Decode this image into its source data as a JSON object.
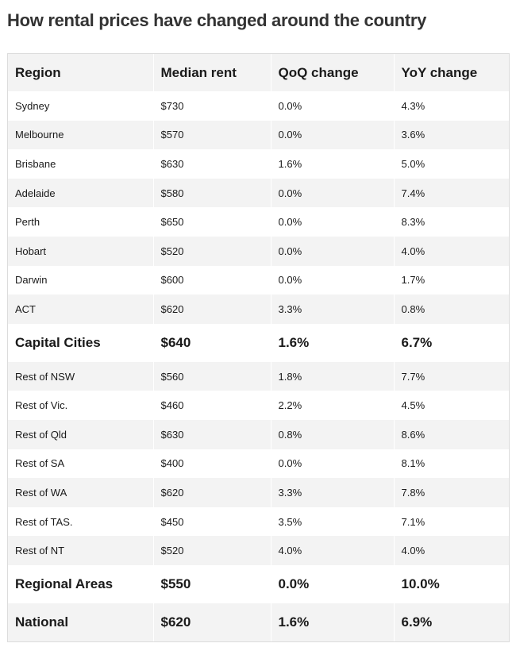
{
  "title": "How rental prices have changed around the country",
  "table": {
    "headers": [
      "Region",
      "Median rent",
      "QoQ change",
      "YoY change"
    ],
    "rows": [
      {
        "cells": [
          "Sydney",
          "$730",
          "0.0%",
          "4.3%"
        ],
        "summary": false
      },
      {
        "cells": [
          "Melbourne",
          "$570",
          "0.0%",
          "3.6%"
        ],
        "summary": false
      },
      {
        "cells": [
          "Brisbane",
          "$630",
          "1.6%",
          "5.0%"
        ],
        "summary": false
      },
      {
        "cells": [
          "Adelaide",
          "$580",
          "0.0%",
          "7.4%"
        ],
        "summary": false
      },
      {
        "cells": [
          "Perth",
          "$650",
          "0.0%",
          "8.3%"
        ],
        "summary": false
      },
      {
        "cells": [
          "Hobart",
          "$520",
          "0.0%",
          "4.0%"
        ],
        "summary": false
      },
      {
        "cells": [
          "Darwin",
          "$600",
          "0.0%",
          "1.7%"
        ],
        "summary": false
      },
      {
        "cells": [
          "ACT",
          "$620",
          "3.3%",
          "0.8%"
        ],
        "summary": false
      },
      {
        "cells": [
          "Capital Cities",
          "$640",
          "1.6%",
          "6.7%"
        ],
        "summary": true
      },
      {
        "cells": [
          "Rest of NSW",
          "$560",
          "1.8%",
          "7.7%"
        ],
        "summary": false
      },
      {
        "cells": [
          "Rest of Vic.",
          "$460",
          "2.2%",
          "4.5%"
        ],
        "summary": false
      },
      {
        "cells": [
          "Rest of Qld",
          "$630",
          "0.8%",
          "8.6%"
        ],
        "summary": false
      },
      {
        "cells": [
          "Rest of SA",
          "$400",
          "0.0%",
          "8.1%"
        ],
        "summary": false
      },
      {
        "cells": [
          "Rest of WA",
          "$620",
          "3.3%",
          "7.8%"
        ],
        "summary": false
      },
      {
        "cells": [
          "Rest of TAS.",
          "$450",
          "3.5%",
          "7.1%"
        ],
        "summary": false
      },
      {
        "cells": [
          "Rest of NT",
          "$520",
          "4.0%",
          "4.0%"
        ],
        "summary": false
      },
      {
        "cells": [
          "Regional Areas",
          "$550",
          "0.0%",
          "10.0%"
        ],
        "summary": true
      },
      {
        "cells": [
          "National",
          "$620",
          "1.6%",
          "6.9%"
        ],
        "summary": true
      }
    ]
  }
}
